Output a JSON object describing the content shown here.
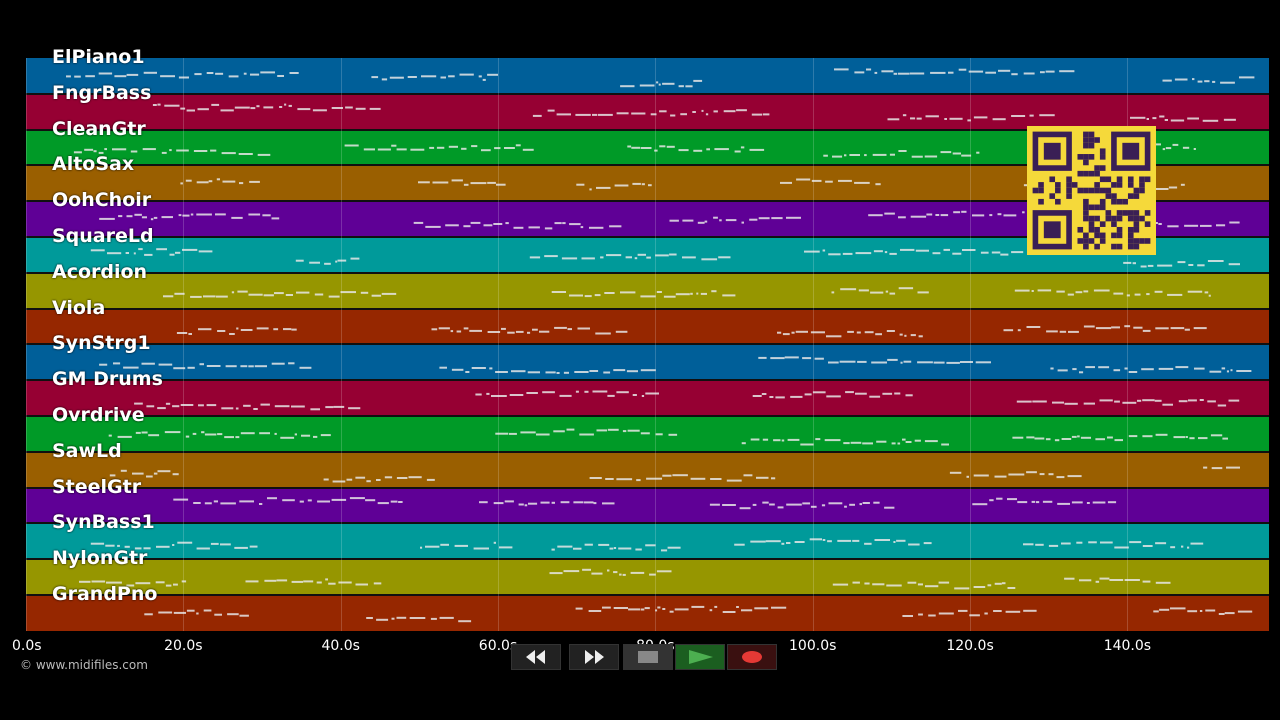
{
  "tracks": [
    {
      "name": "ElPiano1",
      "color": "#005f99"
    },
    {
      "name": "FngrBass",
      "color": "#960033"
    },
    {
      "name": "CleanGtr",
      "color": "#009a27"
    },
    {
      "name": "AltoSax",
      "color": "#9a5f00"
    },
    {
      "name": "OohChoir",
      "color": "#5f0096"
    },
    {
      "name": "SquareLd",
      "color": "#009a9a"
    },
    {
      "name": "Acordion",
      "color": "#969600"
    },
    {
      "name": "Viola",
      "color": "#962700"
    },
    {
      "name": "SynStrg1",
      "color": "#005f99"
    },
    {
      "name": "GM Drums",
      "color": "#960033"
    },
    {
      "name": "Ovrdrive",
      "color": "#009a27"
    },
    {
      "name": "SawLd",
      "color": "#9a5f00"
    },
    {
      "name": "SteelGtr",
      "color": "#5f0096"
    },
    {
      "name": "SynBass1",
      "color": "#009a9a"
    },
    {
      "name": "NylonGtr",
      "color": "#969600"
    },
    {
      "name": "GrandPno",
      "color": "#962700"
    }
  ],
  "timeline": {
    "max_seconds": 158,
    "ticks": [
      "0.0s",
      "20.0s",
      "40.0s",
      "60.0s",
      "80.0s",
      "100.0s",
      "120.0s",
      "140.0s"
    ],
    "tick_values": [
      0,
      20,
      40,
      60,
      80,
      100,
      120,
      140
    ]
  },
  "copyright": "© www.midifiles.com",
  "controls": {
    "rewind_icon": "rewind-icon",
    "fast_forward_icon": "fast-forward-icon",
    "stop_icon": "stop-icon",
    "play_icon": "play-icon",
    "record_icon": "record-icon",
    "play_color": "#4caf50",
    "record_color": "#e53935"
  },
  "qr_code": {
    "color": "#f5d93a",
    "icon": "qr-code-icon"
  }
}
